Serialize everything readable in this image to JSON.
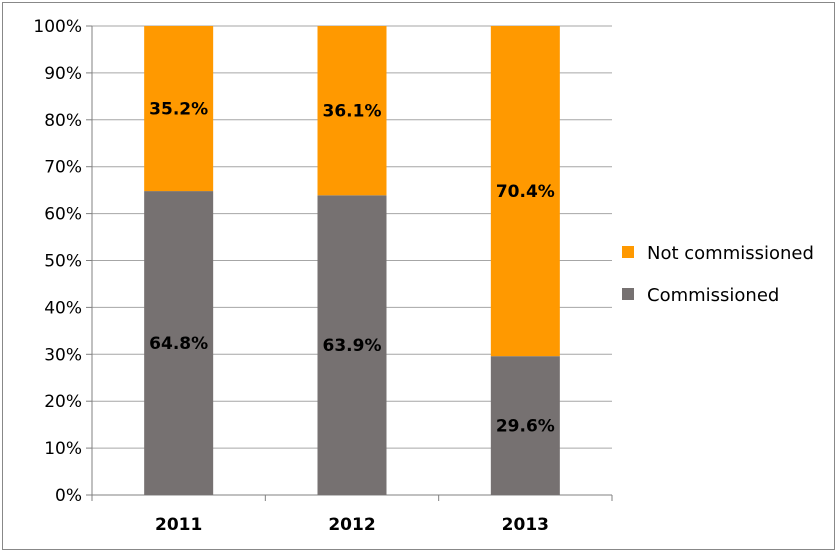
{
  "chart_data": {
    "type": "bar",
    "stacked": true,
    "percent_stacked": true,
    "categories": [
      "2011",
      "2012",
      "2013"
    ],
    "series": [
      {
        "name": "Commissioned",
        "values": [
          64.8,
          63.9,
          29.6
        ],
        "labels": [
          "64.8%",
          "63.9%",
          "29.6%"
        ],
        "color": "#767171"
      },
      {
        "name": "Not commissioned",
        "values": [
          35.2,
          36.1,
          70.4
        ],
        "labels": [
          "35.2%",
          "36.1%",
          "70.4%"
        ],
        "color": "#FF9900"
      }
    ],
    "ylim": [
      0,
      100
    ],
    "yticks": [
      0,
      10,
      20,
      30,
      40,
      50,
      60,
      70,
      80,
      90,
      100
    ],
    "ytick_labels": [
      "0%",
      "10%",
      "20%",
      "30%",
      "40%",
      "50%",
      "60%",
      "70%",
      "80%",
      "90%",
      "100%"
    ],
    "grid": true,
    "legend_position": "right",
    "legend_order": [
      "Not commissioned",
      "Commissioned"
    ]
  }
}
